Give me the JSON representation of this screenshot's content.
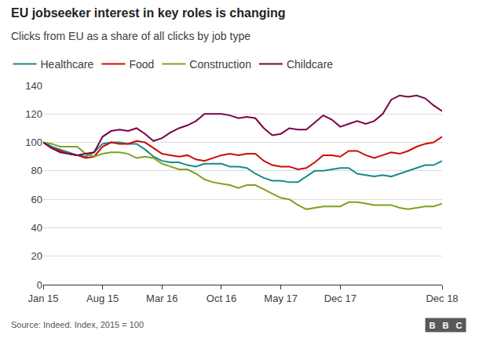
{
  "chart_data": {
    "type": "line",
    "title": "EU jobseeker interest in key roles is changing",
    "subtitle": "Clicks from EU as a share of all clicks by job type",
    "source": "Source: Indeed. Index, 2015 = 100",
    "logo": "BBC",
    "categories": [
      "Jan 15",
      null,
      null,
      null,
      null,
      null,
      null,
      "Aug 15",
      null,
      null,
      null,
      null,
      null,
      null,
      "Mar 16",
      null,
      null,
      null,
      null,
      null,
      null,
      "Oct 16",
      null,
      null,
      null,
      null,
      null,
      null,
      "May 17",
      null,
      null,
      null,
      null,
      null,
      null,
      "Dec 17",
      null,
      null,
      null,
      null,
      null,
      null,
      null,
      null,
      null,
      null,
      null,
      "Dec 18"
    ],
    "series": [
      {
        "name": "Healthcare",
        "color": "#178a8a",
        "values": [
          100,
          97,
          95,
          93,
          91,
          90,
          93,
          99,
          100,
          100,
          99,
          99,
          95,
          90,
          87,
          86,
          86,
          84,
          83,
          85,
          85,
          85,
          83,
          83,
          82,
          78,
          75,
          73,
          73,
          72,
          72,
          76,
          80,
          80,
          81,
          82,
          82,
          78,
          77,
          76,
          77,
          76,
          78,
          80,
          82,
          84,
          84,
          87
        ]
      },
      {
        "name": "Food",
        "color": "#cc0a0a",
        "values": [
          100,
          96,
          94,
          92,
          91,
          89,
          90,
          97,
          100,
          99,
          99,
          101,
          100,
          96,
          92,
          91,
          90,
          91,
          88,
          87,
          89,
          91,
          92,
          91,
          92,
          92,
          87,
          84,
          83,
          83,
          81,
          82,
          86,
          91,
          91,
          90,
          94,
          94,
          91,
          89,
          91,
          93,
          92,
          94,
          97,
          99,
          100,
          104
        ]
      },
      {
        "name": "Construction",
        "color": "#7aa31e",
        "values": [
          100,
          99,
          97,
          97,
          97,
          92,
          90,
          92,
          93,
          93,
          92,
          89,
          90,
          89,
          85,
          83,
          81,
          81,
          78,
          74,
          72,
          71,
          70,
          68,
          70,
          70,
          67,
          64,
          61,
          60,
          56,
          53,
          54,
          55,
          55,
          55,
          58,
          58,
          57,
          56,
          56,
          56,
          54,
          53,
          54,
          55,
          55,
          57
        ]
      },
      {
        "name": "Childcare",
        "color": "#7b0047",
        "values": [
          100,
          96,
          93,
          92,
          91,
          92,
          93,
          104,
          108,
          109,
          108,
          110,
          106,
          101,
          103,
          107,
          110,
          112,
          115,
          120,
          120,
          120,
          119,
          117,
          118,
          117,
          110,
          105,
          106,
          110,
          109,
          109,
          114,
          119,
          116,
          111,
          113,
          115,
          113,
          115,
          120,
          130,
          133,
          132,
          133,
          131,
          126,
          122
        ]
      }
    ],
    "ylim": [
      0,
      140
    ],
    "yticks": [
      0,
      20,
      40,
      60,
      80,
      100,
      120,
      140
    ],
    "grid": true,
    "legend": "top left"
  }
}
